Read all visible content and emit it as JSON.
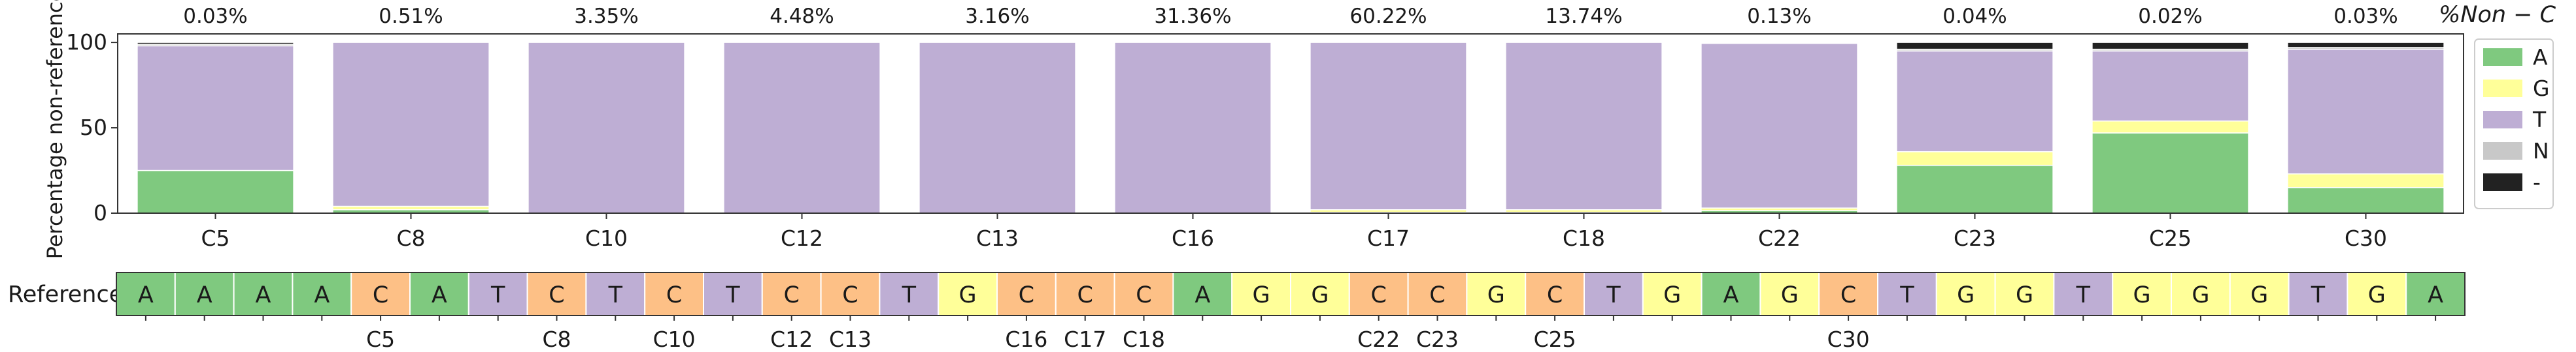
{
  "chart_data": {
    "type": "bar",
    "stacked": true,
    "categories": [
      "C5",
      "C8",
      "C10",
      "C12",
      "C13",
      "C16",
      "C17",
      "C18",
      "C22",
      "C23",
      "C25",
      "C30"
    ],
    "top_annotations": [
      "0.03%",
      "0.51%",
      "3.35%",
      "4.48%",
      "3.16%",
      "31.36%",
      "60.22%",
      "13.74%",
      "0.13%",
      "0.04%",
      "0.02%",
      "0.03%"
    ],
    "right_axis_title": "%Non − C",
    "ylabel": "Percentage non-reference",
    "ylim": [
      0,
      105
    ],
    "yticks": [
      0,
      50,
      100
    ],
    "series": [
      {
        "name": "A",
        "color": "#7fc97f",
        "values": [
          25,
          2,
          0,
          0,
          0,
          0,
          0.5,
          0.5,
          1.5,
          28,
          47,
          15
        ]
      },
      {
        "name": "G",
        "color": "#ffff99",
        "values": [
          0,
          2,
          0,
          0,
          0,
          0,
          1.5,
          1.5,
          1.5,
          8,
          7,
          8
        ]
      },
      {
        "name": "T",
        "color": "#beaed4",
        "values": [
          73,
          96,
          100,
          100,
          100,
          100,
          98,
          98,
          96.5,
          59,
          41,
          73
        ]
      },
      {
        "name": "N",
        "color": "#c8c8c8",
        "values": [
          1,
          0,
          0,
          0,
          0,
          0,
          0,
          0,
          0.5,
          1,
          1,
          1
        ]
      },
      {
        "name": "-",
        "color": "#222222",
        "values": [
          1,
          0,
          0,
          0,
          0,
          0,
          0,
          0,
          0,
          4,
          4,
          3
        ]
      }
    ],
    "legend": {
      "position": "right",
      "entries": [
        "A",
        "G",
        "T",
        "N",
        "-"
      ]
    },
    "grid": false,
    "reference": {
      "label": "Reference",
      "sequence": [
        "A",
        "A",
        "A",
        "A",
        "C",
        "A",
        "T",
        "C",
        "T",
        "C",
        "T",
        "C",
        "C",
        "T",
        "G",
        "C",
        "C",
        "C",
        "A",
        "G",
        "G",
        "C",
        "C",
        "G",
        "C",
        "T",
        "G",
        "A",
        "G",
        "C",
        "T",
        "G",
        "G",
        "T",
        "G",
        "G",
        "G",
        "T",
        "G",
        "A"
      ],
      "base_colors": {
        "A": "#7fc97f",
        "C": "#fdc086",
        "G": "#ffff99",
        "T": "#beaed4"
      },
      "site_labels": [
        {
          "label": "C5",
          "index": 4
        },
        {
          "label": "C8",
          "index": 7
        },
        {
          "label": "C10",
          "index": 9
        },
        {
          "label": "C12",
          "index": 11
        },
        {
          "label": "C13",
          "index": 12
        },
        {
          "label": "C16",
          "index": 15
        },
        {
          "label": "C17",
          "index": 16
        },
        {
          "label": "C18",
          "index": 17
        },
        {
          "label": "C22",
          "index": 21
        },
        {
          "label": "C23",
          "index": 22
        },
        {
          "label": "C25",
          "index": 24
        },
        {
          "label": "C30",
          "index": 29
        }
      ]
    }
  }
}
